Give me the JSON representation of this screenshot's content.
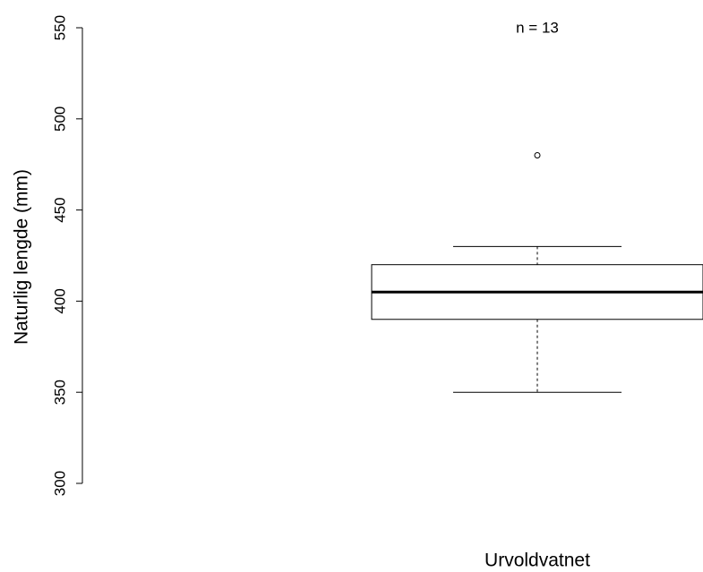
{
  "chart_data": {
    "type": "box",
    "annotation": "n = 13",
    "ylabel": "Naturlig lengde (mm)",
    "categories": [
      "Urvoldvatnet"
    ],
    "boxes": [
      {
        "whislo": 350,
        "q1": 390,
        "med": 405,
        "q3": 420,
        "whishi": 430,
        "fliers": [
          480
        ]
      }
    ],
    "color": "#000000",
    "ylim": [
      300,
      550
    ],
    "yticks": [
      300,
      350,
      400,
      450,
      500,
      550
    ]
  }
}
